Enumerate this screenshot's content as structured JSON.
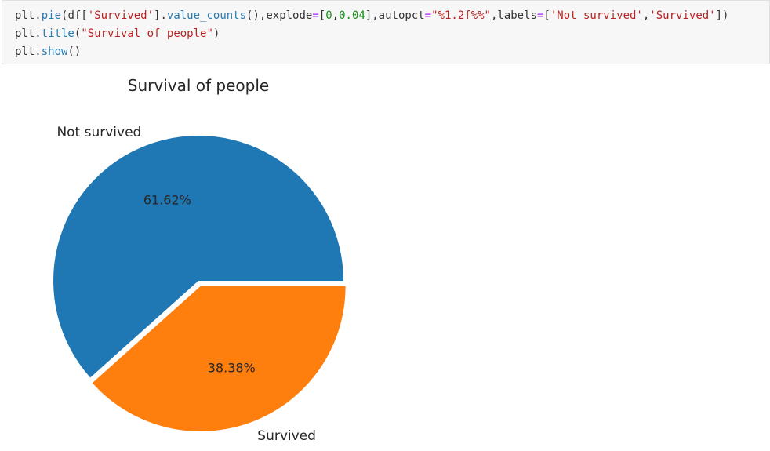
{
  "code": {
    "line1": {
      "fn_obj": "plt.",
      "fn": "pie",
      "p1": "(df[",
      "key": "'Survived'",
      "p2": "].",
      "method": "value_counts",
      "p3": "(),explode",
      "eq1": "=",
      "p4": "[",
      "n1": "0",
      "comma1": ",",
      "n2": "0.04",
      "p5": "],autopct",
      "eq2": "=",
      "fmt": "\"%1.2f%%\"",
      "p6": ",labels",
      "eq3": "=",
      "p7": "[",
      "lab1": "'Not survived'",
      "comma2": ",",
      "lab2": "'Survived'",
      "p8": "])"
    },
    "line2": {
      "fn_obj": "plt.",
      "fn": "title",
      "p1": "(",
      "str": "\"Survival of people\"",
      "p2": ")"
    },
    "line3": {
      "fn_obj": "plt.",
      "fn": "show",
      "p1": "()"
    }
  },
  "chart_data": {
    "type": "pie",
    "title": "Survival of people",
    "labels": [
      "Not survived",
      "Survived"
    ],
    "values": [
      61.62,
      38.38
    ],
    "autopct_labels": [
      "61.62%",
      "38.38%"
    ],
    "explode": [
      0,
      0.04
    ],
    "colors": [
      "#1f77b4",
      "#ff7f0e"
    ]
  }
}
